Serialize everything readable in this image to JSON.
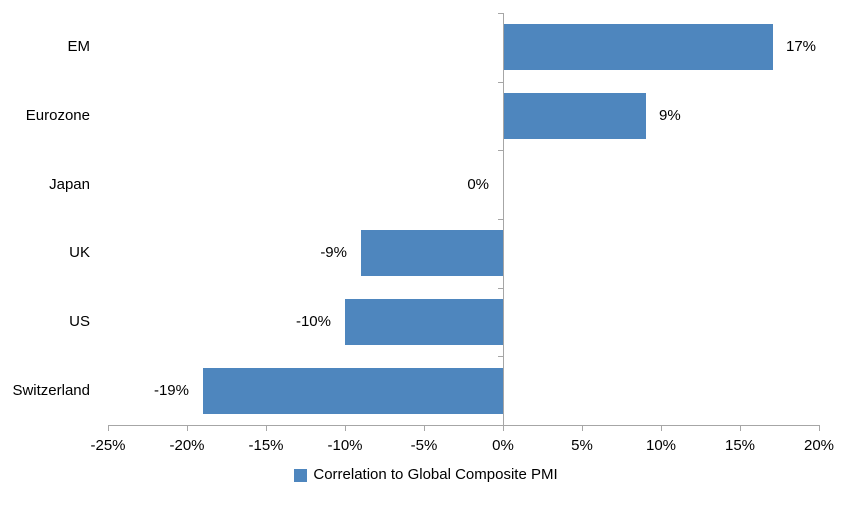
{
  "chart_data": {
    "type": "bar",
    "orientation": "horizontal",
    "title": "",
    "categories": [
      "EM",
      "Eurozone",
      "Japan",
      "UK",
      "US",
      "Switzerland"
    ],
    "values": [
      17,
      9,
      0,
      -9,
      -10,
      -19
    ],
    "value_labels": [
      "17%",
      "9%",
      "0%",
      "-9%",
      "-10%",
      "-19%"
    ],
    "unit": "%",
    "series": [
      {
        "name": "Correlation to Global Composite PMI",
        "values": [
          17,
          9,
          0,
          -9,
          -10,
          -19
        ]
      }
    ],
    "x_axis": {
      "min": -25,
      "max": 20,
      "step": 5,
      "tick_labels": [
        "-25%",
        "-20%",
        "-15%",
        "-10%",
        "-5%",
        "0%",
        "5%",
        "10%",
        "15%",
        "20%"
      ]
    },
    "y_axis": {
      "label": "",
      "gridlines": false
    },
    "legend": {
      "label": "Correlation to Global Composite PMI",
      "position": "bottom",
      "marker": "square-icon"
    },
    "colors": {
      "bar": "#4e86be",
      "axis": "#a6a6a6",
      "text": "#000000",
      "background": "#ffffff"
    }
  }
}
